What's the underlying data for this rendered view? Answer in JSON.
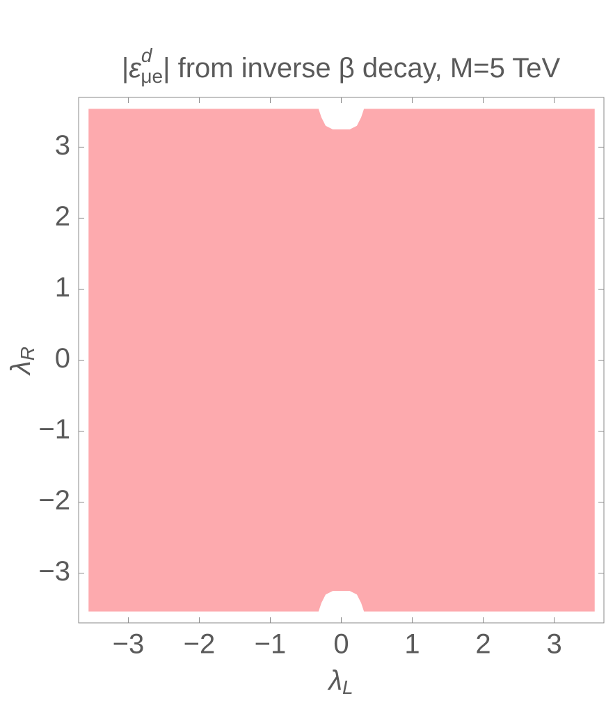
{
  "chart_data": {
    "type": "region",
    "title": {
      "prefix": "|",
      "symbol": "ε",
      "superscript": "d",
      "subscript": "μe",
      "suffix": "| from inverse β decay, M=5 TeV"
    },
    "x_label": {
      "symbol": "λ",
      "subscript": "L"
    },
    "y_label": {
      "symbol": "λ",
      "subscript": "R"
    },
    "xlim": [
      -3.7,
      3.7
    ],
    "ylim": [
      -3.7,
      3.7
    ],
    "xticks": [
      {
        "value": -3,
        "label": "−3"
      },
      {
        "value": -2,
        "label": "−2"
      },
      {
        "value": -1,
        "label": "−1"
      },
      0,
      1,
      2,
      3
    ],
    "yticks": [
      {
        "value": -3,
        "label": "−3"
      },
      {
        "value": -2,
        "label": "−2"
      },
      {
        "value": -1,
        "label": "−1"
      },
      0,
      1,
      2,
      3
    ],
    "series": [
      {
        "color": "#fdaaae",
        "x": [
          -3.56,
          -0.32,
          -0.28,
          -0.22,
          -0.12,
          0.12,
          0.22,
          0.28,
          0.32,
          3.57,
          3.57,
          0.32,
          0.28,
          0.22,
          0.12,
          -0.12,
          -0.22,
          -0.28,
          -0.32,
          -3.56
        ],
        "y": [
          -3.54,
          -3.54,
          -3.42,
          -3.3,
          -3.25,
          -3.25,
          -3.3,
          -3.42,
          -3.54,
          -3.54,
          3.54,
          3.54,
          3.42,
          3.3,
          3.25,
          3.25,
          3.3,
          3.42,
          3.54,
          3.54
        ]
      }
    ]
  }
}
